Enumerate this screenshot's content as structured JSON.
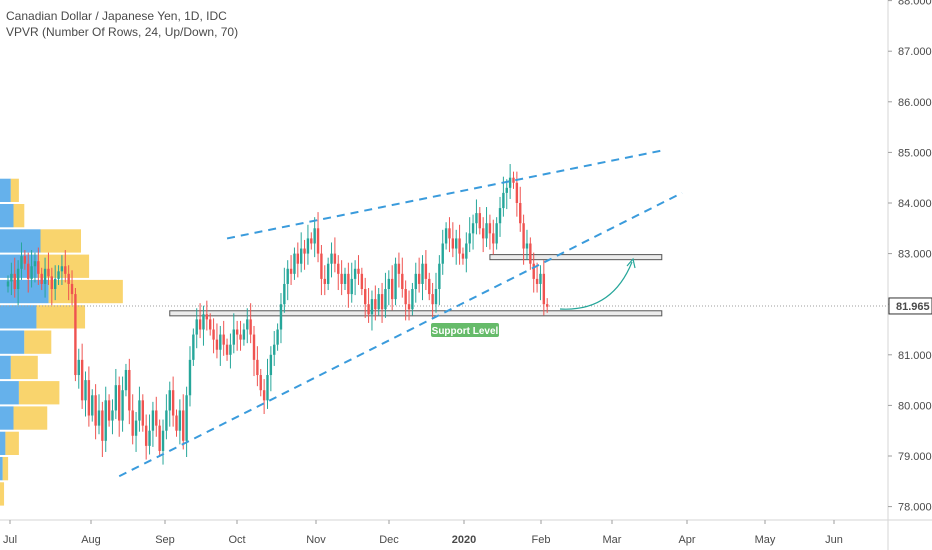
{
  "header": {
    "title": "Canadian Dollar / Japanese Yen, 1D, IDC",
    "indicator": "VPVR (Number Of Rows, 24, Up/Down, 70)"
  },
  "colors": {
    "up": "#26a69a",
    "down": "#ef5350",
    "trendline": "#3a9bdc",
    "vp_up": "#4aa3e8",
    "vp_down": "#f7c948",
    "label_bg": "#66bb6a",
    "price_line": "#9e9e9e"
  },
  "chart_data": {
    "type": "candlestick",
    "price_axis": {
      "ticks": [
        "78.000",
        "79.000",
        "80.000",
        "81.000",
        "82.000",
        "83.000",
        "84.000",
        "85.000",
        "86.000",
        "87.000",
        "88.000"
      ],
      "range": [
        77.7,
        88.0
      ],
      "current_price": "81.965"
    },
    "time_axis": {
      "labels": [
        "Jul",
        "Aug",
        "Sep",
        "Oct",
        "Nov",
        "Dec",
        "2020",
        "Feb",
        "Mar",
        "Apr",
        "May",
        "Jun"
      ]
    },
    "series": [
      {
        "points": [
          [
            0,
            82.45
          ],
          [
            1,
            82.6
          ],
          [
            2,
            82.3
          ],
          [
            3,
            82.7
          ],
          [
            4,
            82.95
          ],
          [
            5,
            82.8
          ],
          [
            6,
            82.5
          ],
          [
            7,
            82.75
          ],
          [
            8,
            82.85
          ],
          [
            9,
            82.6
          ],
          [
            10,
            82.4
          ],
          [
            11,
            82.7
          ],
          [
            12,
            82.55
          ],
          [
            13,
            82.3
          ],
          [
            14,
            82.5
          ],
          [
            15,
            82.65
          ],
          [
            16,
            82.75
          ],
          [
            17,
            82.6
          ],
          [
            18,
            82.4
          ],
          [
            19,
            82.2
          ],
          [
            20,
            80.6
          ],
          [
            21,
            80.9
          ],
          [
            22,
            80.1
          ],
          [
            23,
            80.5
          ],
          [
            24,
            79.8
          ],
          [
            25,
            80.2
          ],
          [
            26,
            79.6
          ],
          [
            27,
            79.9
          ],
          [
            28,
            79.3
          ],
          [
            29,
            80.1
          ],
          [
            30,
            79.7
          ],
          [
            31,
            79.9
          ],
          [
            32,
            80.4
          ],
          [
            33,
            79.7
          ],
          [
            34,
            80.3
          ],
          [
            35,
            80.7
          ],
          [
            36,
            79.9
          ],
          [
            37,
            79.4
          ],
          [
            38,
            79.7
          ],
          [
            39,
            80.1
          ],
          [
            40,
            79.6
          ],
          [
            41,
            79.2
          ],
          [
            42,
            79.5
          ],
          [
            43,
            79.9
          ],
          [
            44,
            79.6
          ],
          [
            45,
            79.1
          ],
          [
            46,
            79.5
          ],
          [
            47,
            79.9
          ],
          [
            48,
            80.3
          ],
          [
            49,
            79.8
          ],
          [
            50,
            79.5
          ],
          [
            51,
            79.9
          ],
          [
            52,
            79.3
          ],
          [
            53,
            80.2
          ],
          [
            54,
            80.9
          ],
          [
            55,
            81.4
          ],
          [
            56,
            81.7
          ],
          [
            57,
            81.5
          ],
          [
            58,
            81.8
          ],
          [
            59,
            81.7
          ],
          [
            60,
            81.5
          ],
          [
            61,
            81.3
          ],
          [
            62,
            81.1
          ],
          [
            63,
            81.4
          ],
          [
            64,
            81.2
          ],
          [
            65,
            81.0
          ],
          [
            66,
            81.2
          ],
          [
            67,
            81.5
          ],
          [
            68,
            81.4
          ],
          [
            69,
            81.3
          ],
          [
            70,
            81.5
          ],
          [
            71,
            81.7
          ],
          [
            72,
            81.4
          ],
          [
            73,
            80.9
          ],
          [
            74,
            80.6
          ],
          [
            75,
            80.3
          ],
          [
            76,
            80.1
          ],
          [
            77,
            80.6
          ],
          [
            78,
            81.0
          ],
          [
            79,
            81.2
          ],
          [
            80,
            81.5
          ],
          [
            81,
            82.0
          ],
          [
            82,
            82.4
          ],
          [
            83,
            82.7
          ],
          [
            84,
            82.6
          ],
          [
            85,
            83.0
          ],
          [
            86,
            82.8
          ],
          [
            87,
            83.1
          ],
          [
            88,
            83.0
          ],
          [
            89,
            83.3
          ],
          [
            90,
            83.2
          ],
          [
            91,
            83.5
          ],
          [
            92,
            83.0
          ],
          [
            93,
            82.5
          ],
          [
            94,
            82.4
          ],
          [
            95,
            82.8
          ],
          [
            96,
            83.0
          ],
          [
            97,
            82.8
          ],
          [
            98,
            82.6
          ],
          [
            99,
            82.4
          ],
          [
            100,
            82.6
          ],
          [
            101,
            82.2
          ],
          [
            102,
            82.5
          ],
          [
            103,
            82.7
          ],
          [
            104,
            82.6
          ],
          [
            105,
            82.3
          ],
          [
            106,
            82.0
          ],
          [
            107,
            81.8
          ],
          [
            108,
            82.1
          ],
          [
            109,
            81.9
          ],
          [
            110,
            82.2
          ],
          [
            111,
            81.9
          ],
          [
            112,
            82.3
          ],
          [
            113,
            82.5
          ],
          [
            114,
            82.1
          ],
          [
            115,
            82.8
          ],
          [
            116,
            82.6
          ],
          [
            117,
            82.3
          ],
          [
            118,
            82.0
          ],
          [
            119,
            81.9
          ],
          [
            120,
            82.3
          ],
          [
            121,
            82.6
          ],
          [
            122,
            82.4
          ],
          [
            123,
            82.8
          ],
          [
            124,
            82.5
          ],
          [
            125,
            82.2
          ],
          [
            126,
            82.0
          ],
          [
            127,
            82.3
          ],
          [
            128,
            82.8
          ],
          [
            129,
            83.2
          ],
          [
            130,
            83.5
          ],
          [
            131,
            83.3
          ],
          [
            132,
            83.1
          ],
          [
            133,
            83.3
          ],
          [
            134,
            83.0
          ],
          [
            135,
            82.9
          ],
          [
            136,
            83.2
          ],
          [
            137,
            83.4
          ],
          [
            138,
            83.6
          ],
          [
            139,
            83.8
          ],
          [
            140,
            83.5
          ],
          [
            141,
            83.3
          ],
          [
            142,
            83.6
          ],
          [
            143,
            83.4
          ],
          [
            144,
            83.2
          ],
          [
            145,
            83.6
          ],
          [
            146,
            83.9
          ],
          [
            147,
            84.2
          ],
          [
            148,
            84.3
          ],
          [
            149,
            84.5
          ],
          [
            150,
            84.4
          ],
          [
            151,
            84.0
          ],
          [
            152,
            83.6
          ],
          [
            153,
            83.1
          ],
          [
            154,
            83.2
          ],
          [
            155,
            82.8
          ],
          [
            156,
            82.5
          ],
          [
            157,
            82.4
          ],
          [
            158,
            82.6
          ],
          [
            159,
            82.0
          ],
          [
            160,
            81.95
          ]
        ]
      }
    ],
    "volume_profile": [
      {
        "price": 78.25,
        "up": 0,
        "down": 3
      },
      {
        "price": 78.75,
        "up": 2,
        "down": 4
      },
      {
        "price": 79.25,
        "up": 4,
        "down": 10
      },
      {
        "price": 79.75,
        "up": 10,
        "down": 25
      },
      {
        "price": 80.25,
        "up": 14,
        "down": 30
      },
      {
        "price": 80.75,
        "up": 8,
        "down": 20
      },
      {
        "price": 81.25,
        "up": 18,
        "down": 20
      },
      {
        "price": 81.75,
        "up": 27,
        "down": 36
      },
      {
        "price": 82.25,
        "up": 36,
        "down": 55
      },
      {
        "price": 82.75,
        "up": 28,
        "down": 38
      },
      {
        "price": 83.25,
        "up": 30,
        "down": 30
      },
      {
        "price": 83.75,
        "up": 10,
        "down": 8
      },
      {
        "price": 84.25,
        "up": 8,
        "down": 6
      }
    ],
    "annotations": {
      "upper_trendline": {
        "from": [
          65,
          83.3
        ],
        "to": [
          195,
          85.05
        ]
      },
      "lower_trendline": {
        "from": [
          33,
          78.6
        ],
        "to": [
          200,
          84.2
        ]
      },
      "support_zone": {
        "from_index": 48,
        "to_index": 194,
        "low": 81.77,
        "high": 81.87
      },
      "resistance_zone": {
        "from_index": 143,
        "to_index": 194,
        "low": 82.88,
        "high": 82.98
      },
      "support_label": "Support Level"
    }
  }
}
